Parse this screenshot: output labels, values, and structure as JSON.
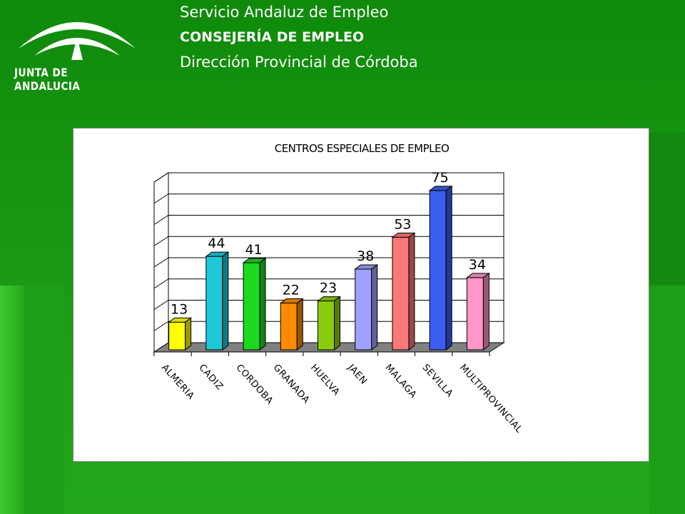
{
  "header": {
    "logo_text": "JUNTA DE ANDALUCIA",
    "line1": "Servicio Andaluz de Empleo",
    "line2": "CONSEJERÍA DE EMPLEO",
    "line3": "Dirección Provincial de Córdoba"
  },
  "colors": {
    "background": "#1a8f12",
    "header_text": "#ffffff"
  },
  "chart_data": {
    "type": "bar",
    "title": "CENTROS ESPECIALES DE EMPLEO",
    "xlabel": "",
    "ylabel": "",
    "ylim": [
      0,
      80
    ],
    "grid": true,
    "categories": [
      "ALMERIA",
      "CADIZ",
      "CORDOBA",
      "GRANADA",
      "HUELVA",
      "JAEN",
      "MALAGA",
      "SEVILLA",
      "MULTIPROVINCIAL"
    ],
    "values": [
      13,
      44,
      41,
      22,
      23,
      38,
      53,
      75,
      34
    ],
    "bar_colors": [
      "#ffff00",
      "#1ec8d8",
      "#1ed81e",
      "#ff8c00",
      "#8ccc10",
      "#a0a0ff",
      "#ff7878",
      "#3a5ef0",
      "#ff96c8"
    ]
  }
}
